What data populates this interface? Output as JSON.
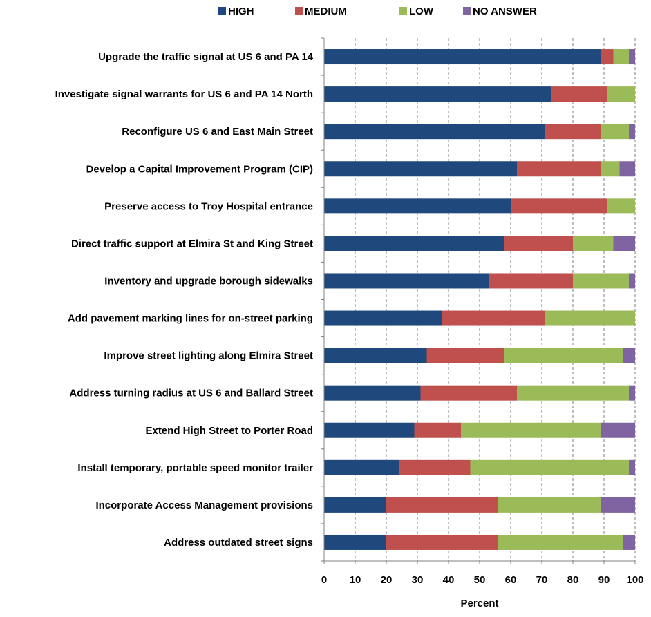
{
  "chart_data": {
    "type": "bar",
    "orientation": "horizontal",
    "stacked": true,
    "categories": [
      "Upgrade the traffic signal at US 6 and PA 14",
      "Investigate signal warrants for US 6 and PA 14 North",
      "Reconfigure US 6 and East Main Street",
      "Develop a Capital Improvement Program (CIP)",
      "Preserve access to Troy  Hospital entrance",
      "Direct traffic support at Elmira St and King Street",
      "Inventory and upgrade borough sidewalks",
      "Add pavement marking lines for on-street parking",
      "Improve street lighting along Elmira Street",
      "Address turning radius at US 6 and Ballard Street",
      "Extend High Street to Porter Road",
      "Install temporary, portable speed monitor trailer",
      "Incorporate Access Management provisions",
      "Address outdated street signs"
    ],
    "series": [
      {
        "name": "HIGH",
        "color": "#1F497D",
        "values": [
          89,
          73,
          71,
          62,
          60,
          58,
          53,
          38,
          33,
          31,
          29,
          24,
          20,
          20
        ]
      },
      {
        "name": "MEDIUM",
        "color": "#C0504D",
        "values": [
          4,
          18,
          18,
          27,
          31,
          22,
          27,
          33,
          25,
          31,
          15,
          23,
          36,
          36
        ]
      },
      {
        "name": "LOW",
        "color": "#9BBB59",
        "values": [
          5,
          9,
          9,
          6,
          9,
          13,
          18,
          29,
          38,
          36,
          45,
          51,
          33,
          40
        ]
      },
      {
        "name": "NO ANSWER",
        "color": "#8064A2",
        "values": [
          2,
          0,
          2,
          5,
          0,
          7,
          2,
          0,
          4,
          2,
          11,
          2,
          11,
          4
        ]
      }
    ],
    "xlabel": "Percent",
    "ylabel": "",
    "xlim": [
      0,
      100
    ],
    "xticks": [
      "0",
      "10",
      "20",
      "30",
      "40",
      "50",
      "60",
      "70",
      "80",
      "90",
      "100"
    ],
    "grid": "vertical dashed",
    "legend_position": "top"
  }
}
